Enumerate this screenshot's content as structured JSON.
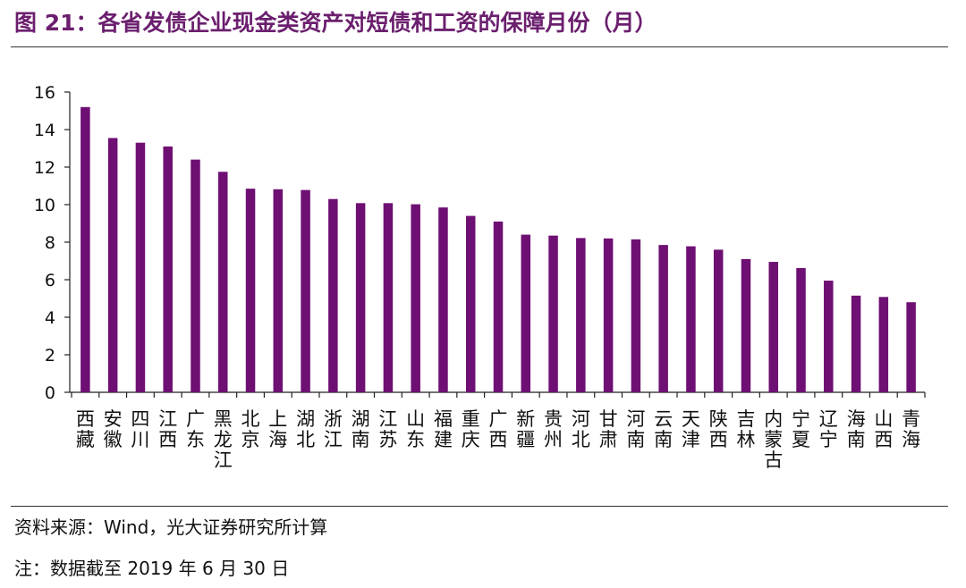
{
  "header": {
    "title": "图 21：各省发债企业现金类资产对短债和工资的保障月份（月）"
  },
  "footer": {
    "source": "资料来源：Wind，光大证券研究所计算",
    "note": "注：数据截至 2019 年 6 月 30 日"
  },
  "colors": {
    "bar": "#6e0f73",
    "title": "#6b1f6e"
  },
  "chart_data": {
    "type": "bar",
    "title": "图 21：各省发债企业现金类资产对短债和工资的保障月份（月）",
    "xlabel": "",
    "ylabel": "",
    "ylim": [
      0,
      16
    ],
    "yticks": [
      0,
      2,
      4,
      6,
      8,
      10,
      12,
      14,
      16
    ],
    "grid": false,
    "legend": "none",
    "categories": [
      "西藏",
      "安徽",
      "四川",
      "江西",
      "广东",
      "黑龙江",
      "北京",
      "上海",
      "湖北",
      "浙江",
      "湖南",
      "江苏",
      "山东",
      "福建",
      "重庆",
      "广西",
      "新疆",
      "贵州",
      "河北",
      "甘肃",
      "河南",
      "云南",
      "天津",
      "陕西",
      "吉林",
      "内蒙古",
      "宁夏",
      "辽宁",
      "海南",
      "山西",
      "青海"
    ],
    "values": [
      15.2,
      13.55,
      13.3,
      13.1,
      12.4,
      11.75,
      10.85,
      10.82,
      10.78,
      10.3,
      10.08,
      10.08,
      10.02,
      9.85,
      9.4,
      9.1,
      8.4,
      8.35,
      8.22,
      8.2,
      8.15,
      7.85,
      7.78,
      7.6,
      7.1,
      6.95,
      6.62,
      5.95,
      5.15,
      5.08,
      4.8
    ]
  }
}
